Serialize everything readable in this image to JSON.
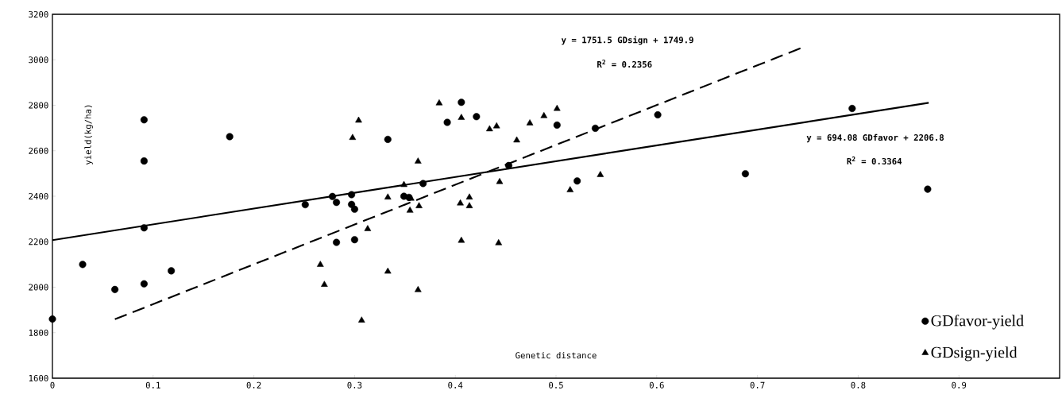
{
  "chart_data": {
    "type": "scatter",
    "xlabel": "Genetic distance",
    "ylabel": "yield(kg/ha)",
    "xlim": [
      0,
      1
    ],
    "ylim": [
      1600,
      3200
    ],
    "xticks": [
      {
        "value": 0,
        "label": "0"
      },
      {
        "value": 0.1,
        "label": "0.1"
      },
      {
        "value": 0.2,
        "label": "0.2"
      },
      {
        "value": 0.3,
        "label": "0.3"
      },
      {
        "value": 0.4,
        "label": "0.4"
      },
      {
        "value": 0.5,
        "label": "0.5"
      },
      {
        "value": 0.6,
        "label": "0.6"
      },
      {
        "value": 0.7,
        "label": "0.7"
      },
      {
        "value": 0.8,
        "label": "0.8"
      },
      {
        "value": 0.9,
        "label": "0.9"
      },
      {
        "value": 1,
        "label": null
      }
    ],
    "yticks": [
      1600,
      1800,
      2000,
      2200,
      2400,
      2600,
      2800,
      3000,
      3200
    ],
    "grid": false,
    "legend": "bottom right",
    "annotations": [
      "y = 1751.5 GDsign + 1749.9",
      "R$^{2}$ = 0.2356",
      "y = 694.08 GDfavor + 2206.8",
      "R$^{2}$ = 0.3364"
    ],
    "series": [
      {
        "name": "GDfavor-yield",
        "marker": "circle",
        "color": "#000000",
        "x": [
          0,
          0.03,
          0.062,
          0.091,
          0.091,
          0.091,
          0.091,
          0.118,
          0.176,
          0.251,
          0.278,
          0.282,
          0.282,
          0.297,
          0.297,
          0.3,
          0.3,
          0.333,
          0.349,
          0.354,
          0.368,
          0.392,
          0.406,
          0.421,
          0.453,
          0.501,
          0.521,
          0.539,
          0.601,
          0.688,
          0.794,
          0.869
        ],
        "values": [
          1860,
          2100,
          1990,
          2736,
          2555,
          2261,
          2015,
          2072,
          2662,
          2363,
          2399,
          2373,
          2197,
          2407,
          2364,
          2343,
          2209,
          2650,
          2400,
          2395,
          2456,
          2725,
          2813,
          2750,
          2535,
          2713,
          2467,
          2699,
          2758,
          2499,
          2786,
          2431
        ]
      },
      {
        "name": "GDsign-yield",
        "marker": "triangle",
        "color": "#000000",
        "x": [
          0.266,
          0.27,
          0.298,
          0.304,
          0.307,
          0.313,
          0.333,
          0.333,
          0.349,
          0.355,
          0.356,
          0.363,
          0.364,
          0.363,
          0.384,
          0.406,
          0.405,
          0.406,
          0.414,
          0.414,
          0.434,
          0.441,
          0.444,
          0.443,
          0.461,
          0.474,
          0.488,
          0.501,
          0.514,
          0.544
        ],
        "values": [
          2099,
          2011,
          2657,
          2733,
          1854,
          2256,
          2395,
          2069,
          2450,
          2337,
          2390,
          2553,
          2357,
          1988,
          2809,
          2745,
          2369,
          2205,
          2395,
          2357,
          2695,
          2708,
          2463,
          2194,
          2646,
          2721,
          2753,
          2785,
          2427,
          2494
        ]
      },
      {
        "type": "line",
        "line_style": "solid",
        "marker": "none",
        "color": "#000000",
        "x": [
          0,
          0.87
        ],
        "values": [
          2207,
          2811
        ]
      },
      {
        "type": "line",
        "line_style": "dashed",
        "marker": "none",
        "color": "#000000",
        "x": [
          0.062,
          0.744
        ],
        "values": [
          1859,
          3053
        ]
      }
    ]
  }
}
